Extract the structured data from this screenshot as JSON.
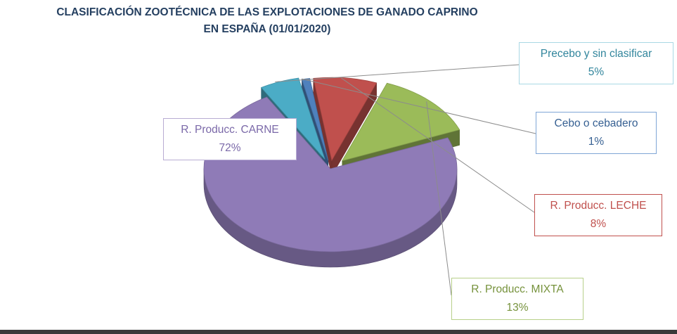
{
  "chart_data": {
    "type": "pie",
    "title_lines": [
      "CLASIFICACIÓN ZOOTÉCNICA DE LAS EXPLOTACIONES DE GANADO CAPRINO",
      "EN ESPAÑA  (01/01/2020)"
    ],
    "slices": [
      {
        "name": "R. Producc. CARNE",
        "value": 72,
        "label": "72%",
        "color": "#8f7bb7"
      },
      {
        "name": "Precebo y sin clasificar",
        "value": 5,
        "label": "5%",
        "color": "#4bacc6"
      },
      {
        "name": "Cebo o cebadero",
        "value": 1,
        "label": "1%",
        "color": "#4f81bd"
      },
      {
        "name": "R. Producc. LECHE",
        "value": 8,
        "label": "8%",
        "color": "#c0504d"
      },
      {
        "name": "R. Producc. MIXTA",
        "value": 13,
        "label": "13%",
        "color": "#9bbb59"
      }
    ],
    "legend": "none",
    "style": "3d-exploded"
  }
}
